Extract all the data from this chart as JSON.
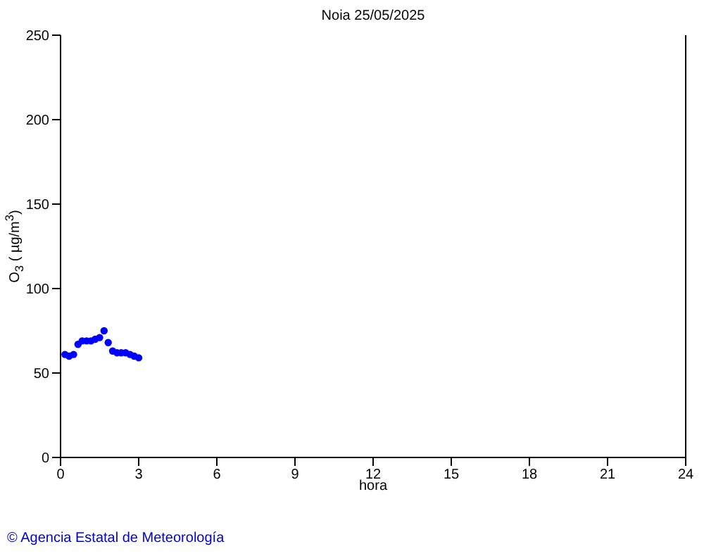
{
  "chart_data": {
    "type": "scatter",
    "title": "Noia 25/05/2025",
    "xlabel": "hora",
    "ylabel": "O$_{3}$ ( µg/m$^{3}$)",
    "annotations": [
      "© Agencia Estatal de Meteorología"
    ],
    "x": [
      0.17,
      0.33,
      0.5,
      0.67,
      0.83,
      1,
      1.17,
      1.33,
      1.5,
      1.67,
      1.83,
      2,
      2.17,
      2.33,
      2.5,
      2.67,
      2.83,
      3
    ],
    "series": [
      {
        "color": "#0000ff",
        "values": [
          61,
          60,
          61,
          67,
          69,
          69,
          69,
          70,
          71,
          75,
          68,
          63,
          62,
          62,
          62,
          61,
          60,
          59
        ]
      }
    ],
    "xlim": [
      0,
      24
    ],
    "xticks": [
      0,
      3,
      6,
      9,
      12,
      15,
      18,
      21,
      24
    ],
    "ylim": [
      0,
      250
    ],
    "yticks": [
      0,
      50,
      100,
      150,
      200,
      250
    ],
    "grid": false,
    "legend": false,
    "marker": "circle"
  }
}
